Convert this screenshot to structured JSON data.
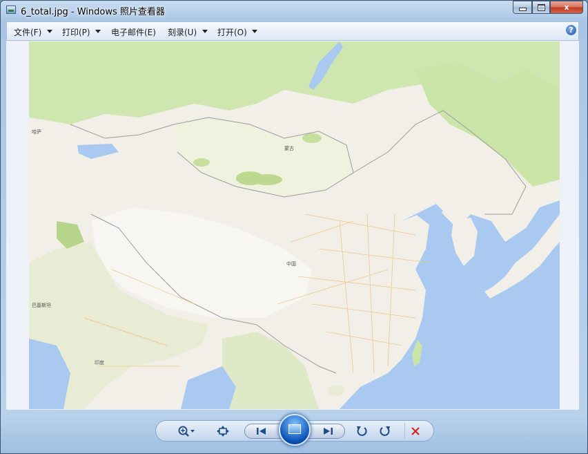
{
  "window": {
    "title": "6_total.jpg - Windows 照片查看器",
    "min_label": "",
    "max_label": "",
    "close_label": "x"
  },
  "menu": {
    "items": [
      {
        "label": "文件(F)",
        "has_dropdown": true
      },
      {
        "label": "打印(P)",
        "has_dropdown": true
      },
      {
        "label": "电子邮件(E)",
        "has_dropdown": false
      },
      {
        "label": "刻录(U)",
        "has_dropdown": true
      },
      {
        "label": "打开(O)",
        "has_dropdown": true
      }
    ],
    "help_label": "?"
  },
  "map_labels": {
    "mongolia": "蒙古",
    "china": "中国",
    "india": "印度",
    "pakistan": "巴基斯坦",
    "kazakhstan": "哈萨"
  },
  "toolbar": {
    "icons": [
      "zoom-icon",
      "actual-size-icon",
      "previous-icon",
      "slideshow-icon",
      "next-icon",
      "rotate-left-icon",
      "rotate-right-icon",
      "delete-icon"
    ]
  },
  "colors": {
    "water": "#a9c9f1",
    "land": "#f2efe9",
    "green": "#cbe6a3",
    "accent": "#0b4fb5",
    "delete": "#d5231f"
  }
}
